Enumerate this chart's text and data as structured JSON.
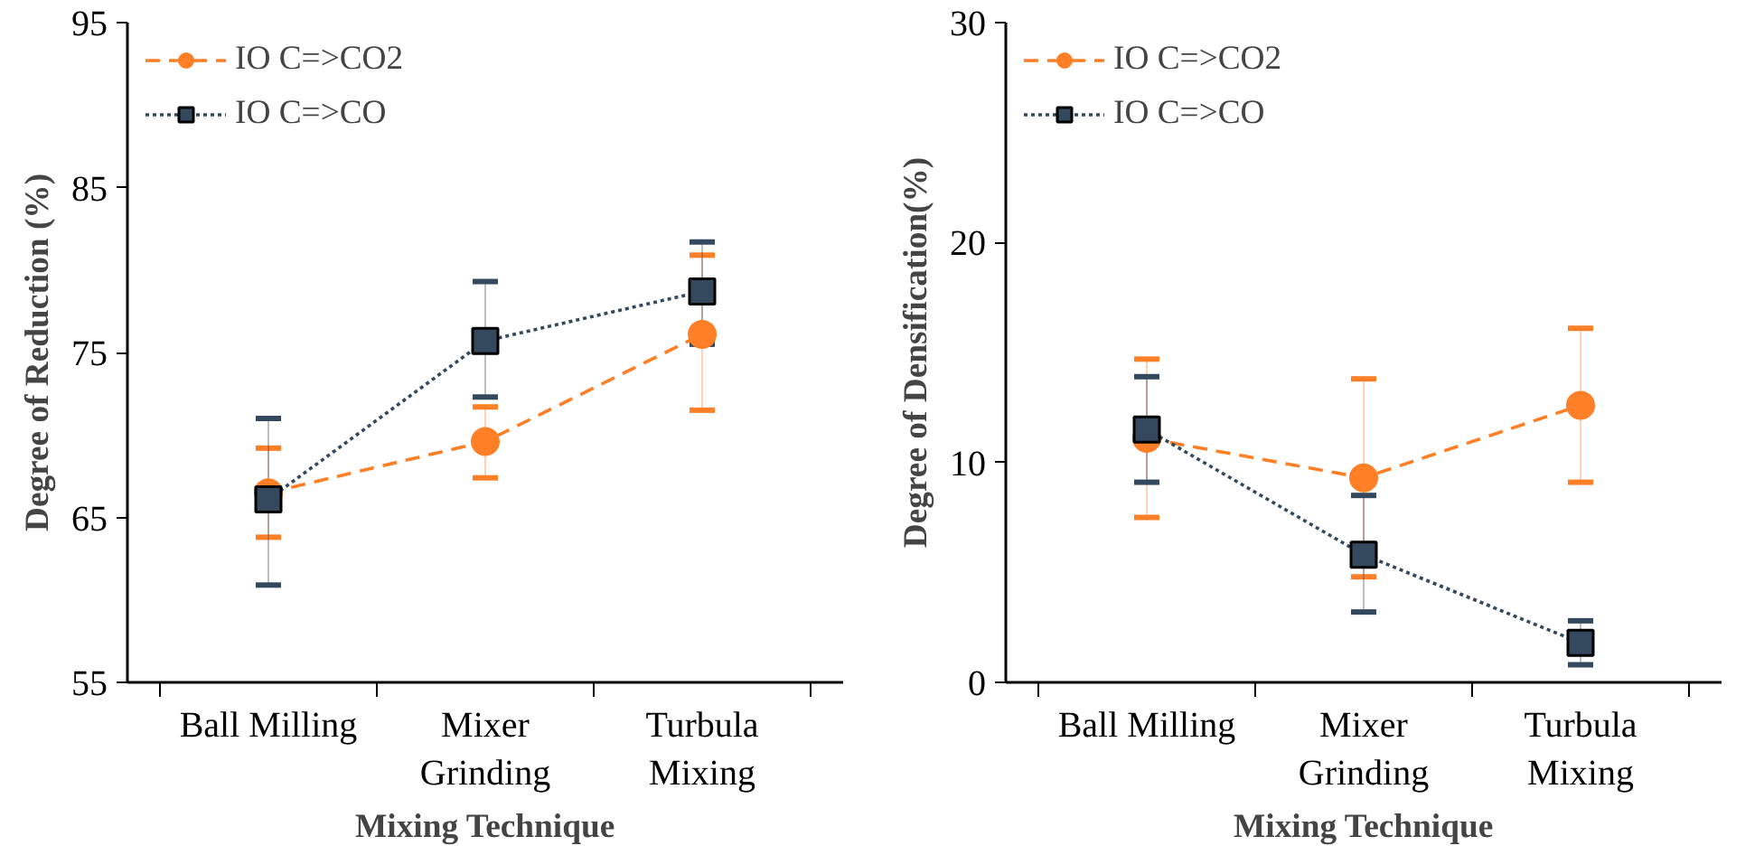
{
  "chart_data": [
    {
      "type": "line",
      "xlabel": "Mixing Technique",
      "ylabel": "Degree of Reduction (%)",
      "categories": [
        "Ball Milling",
        "Mixer\nGrinding",
        "Turbula\nMixing"
      ],
      "ylim": [
        55,
        95
      ],
      "yticks": [
        55,
        65,
        75,
        85,
        95
      ],
      "grid": false,
      "legend": "top left",
      "series": [
        {
          "name": "IO C=>CO2",
          "color": "#ff7f27",
          "marker": "circle",
          "line_style": "dashed",
          "values": [
            66.5,
            69.6,
            76.1
          ],
          "errors": [
            [
              63.8,
              69.2
            ],
            [
              67.4,
              71.7
            ],
            [
              71.5,
              80.9
            ]
          ]
        },
        {
          "name": "IO C=>CO",
          "color": "#34495e",
          "marker": "square",
          "line_style": "dotted",
          "values": [
            66.1,
            75.7,
            78.7
          ],
          "errors": [
            [
              60.9,
              71.0
            ],
            [
              72.3,
              79.3
            ],
            [
              75.5,
              81.7
            ]
          ]
        }
      ]
    },
    {
      "type": "line",
      "xlabel": "Mixing Technique",
      "ylabel": "Degree of Densification(%)",
      "categories": [
        "Ball Milling",
        "Mixer\nGrinding",
        "Turbula\nMixing"
      ],
      "ylim": [
        0,
        30
      ],
      "yticks": [
        0,
        10,
        20,
        30
      ],
      "grid": false,
      "legend": "top left",
      "series": [
        {
          "name": "IO C=>CO2",
          "color": "#ff7f27",
          "marker": "circle",
          "line_style": "dashed",
          "values": [
            11.1,
            9.3,
            12.6
          ],
          "errors": [
            [
              7.5,
              14.7
            ],
            [
              4.8,
              13.8
            ],
            [
              9.1,
              16.1
            ]
          ]
        },
        {
          "name": "IO C=>CO",
          "color": "#34495e",
          "marker": "square",
          "line_style": "dotted",
          "values": [
            11.5,
            5.8,
            1.8
          ],
          "errors": [
            [
              9.1,
              13.9
            ],
            [
              3.2,
              8.5
            ],
            [
              0.8,
              2.8
            ]
          ]
        }
      ]
    }
  ]
}
